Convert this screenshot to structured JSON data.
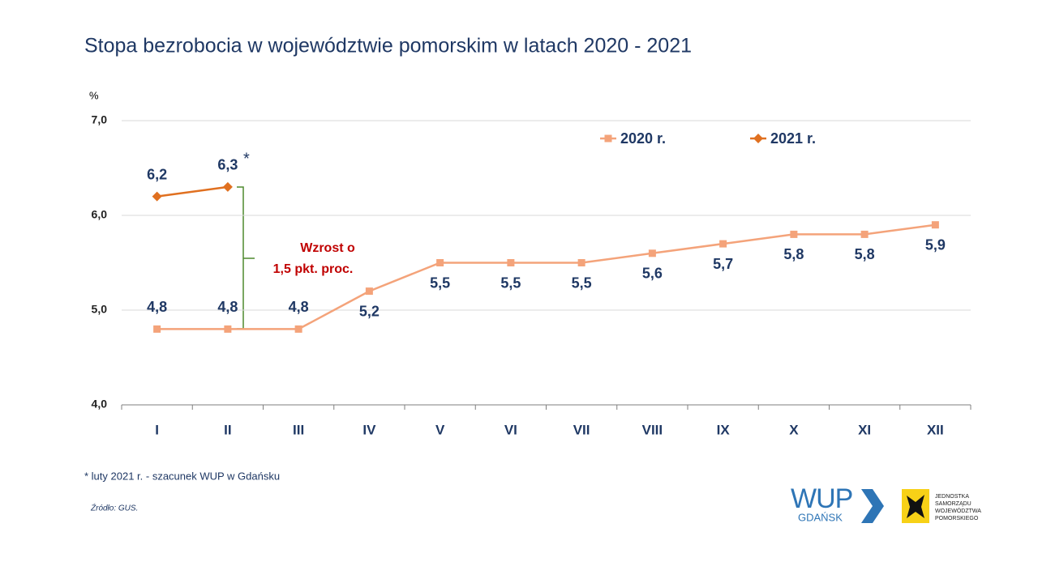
{
  "chart_data": {
    "type": "line",
    "title": "Stopa bezrobocia w województwie pomorskim w latach 2020 - 2021",
    "y_label": "%",
    "categories": [
      "I",
      "II",
      "III",
      "IV",
      "V",
      "VI",
      "VII",
      "VIII",
      "IX",
      "X",
      "XI",
      "XII"
    ],
    "series": [
      {
        "name": "2020 r.",
        "color": "#f4a37a",
        "marker": "square",
        "values": [
          4.8,
          4.8,
          4.8,
          5.2,
          5.5,
          5.5,
          5.5,
          5.6,
          5.7,
          5.8,
          5.8,
          5.9
        ],
        "value_labels": [
          "4,8",
          "4,8",
          "4,8",
          "5,2",
          "5,5",
          "5,5",
          "5,5",
          "5,6",
          "5,7",
          "5,8",
          "5,8",
          "5,9"
        ]
      },
      {
        "name": "2021 r.",
        "color": "#e07020",
        "marker": "diamond",
        "values": [
          6.2,
          6.3,
          null,
          null,
          null,
          null,
          null,
          null,
          null,
          null,
          null,
          null
        ],
        "value_labels": [
          "6,2",
          "6,3",
          null,
          null,
          null,
          null,
          null,
          null,
          null,
          null,
          null,
          null
        ]
      }
    ],
    "ylim": [
      4,
      7
    ],
    "yticks": [
      {
        "value": 4,
        "label": "4,0"
      },
      {
        "value": 5,
        "label": "5,0"
      },
      {
        "value": 6,
        "label": "6,0"
      },
      {
        "value": 7,
        "label": "7,0"
      }
    ],
    "grid": true,
    "legend": "top-right",
    "annotation_star": "*",
    "annotation": [
      "Wzrost o",
      "1,5 pkt. proc."
    ],
    "footnote": "* luty 2021 r. - szacunek WUP w Gdańsku",
    "source": "Źródło: GUS.",
    "logo": {
      "name": "WUP",
      "city": "GDAŃSK",
      "partner": [
        "JEDNOSTKA",
        "SAMORZĄDU",
        "WOJEWÓDZTWA",
        "POMORSKIEGO"
      ]
    }
  }
}
